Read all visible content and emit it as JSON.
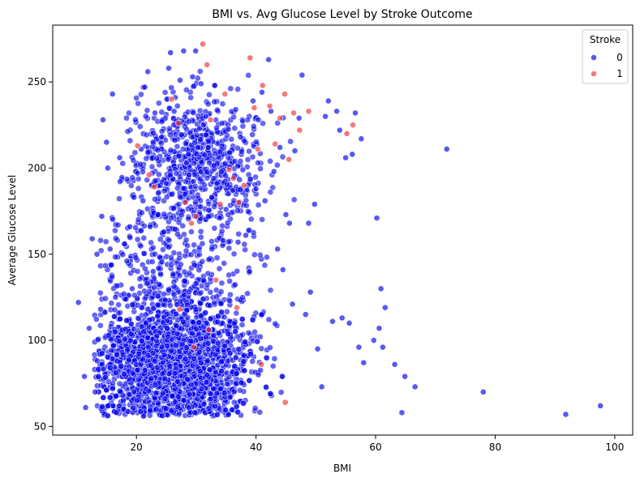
{
  "chart_data": {
    "type": "scatter",
    "title": "BMI vs. Avg Glucose Level by Stroke Outcome",
    "xlabel": "BMI",
    "ylabel": "Average Glucose Level",
    "xlim": [
      6,
      103
    ],
    "ylim": [
      45,
      283
    ],
    "xticks": [
      20,
      40,
      60,
      80,
      100
    ],
    "yticks": [
      50,
      100,
      150,
      200,
      250
    ],
    "grid": false,
    "legend": {
      "title": "Stroke",
      "placement": "top-right"
    },
    "series": [
      {
        "name": "0",
        "color": "#0000ee",
        "points": [
          [
            10.3,
            122
          ],
          [
            11.3,
            79
          ],
          [
            11.5,
            61
          ],
          [
            12.1,
            107
          ],
          [
            12.6,
            159
          ],
          [
            13.1,
            70
          ],
          [
            13.4,
            150
          ],
          [
            14.0,
            118
          ],
          [
            14.2,
            172
          ],
          [
            14.4,
            228
          ],
          [
            15.0,
            215
          ],
          [
            15.2,
            200
          ],
          [
            15.6,
            153
          ],
          [
            16.0,
            243
          ],
          [
            16.5,
            125
          ],
          [
            17.2,
            206
          ],
          [
            18.0,
            156
          ],
          [
            18.4,
            146
          ],
          [
            18.9,
            166
          ],
          [
            19.3,
            130
          ],
          [
            19.6,
            183
          ],
          [
            20.2,
            197
          ],
          [
            20.8,
            211
          ],
          [
            21.1,
            181
          ],
          [
            21.4,
            247
          ],
          [
            21.9,
            256
          ],
          [
            22.3,
            166
          ],
          [
            22.8,
            140
          ],
          [
            23.1,
            232
          ],
          [
            23.6,
            173
          ],
          [
            24.2,
            218
          ],
          [
            24.6,
            163
          ],
          [
            25.0,
            191
          ],
          [
            25.4,
            258
          ],
          [
            25.7,
            267
          ],
          [
            26.3,
            233
          ],
          [
            26.5,
            241
          ],
          [
            27.3,
            251
          ],
          [
            27.9,
            268
          ],
          [
            28.4,
            203
          ],
          [
            28.8,
            196
          ],
          [
            29.4,
            253
          ],
          [
            29.9,
            268
          ],
          [
            30.3,
            212
          ],
          [
            30.8,
            249
          ],
          [
            31.2,
            225
          ],
          [
            31.6,
            230
          ],
          [
            32.0,
            212
          ],
          [
            32.6,
            183
          ],
          [
            33.1,
            248
          ],
          [
            33.5,
            191
          ],
          [
            33.9,
            171
          ],
          [
            34.5,
            158
          ],
          [
            35.0,
            176
          ],
          [
            35.6,
            209
          ],
          [
            36.1,
            187
          ],
          [
            36.6,
            234
          ],
          [
            37.0,
            157
          ],
          [
            37.4,
            218
          ],
          [
            37.8,
            199
          ],
          [
            38.3,
            161
          ],
          [
            38.9,
            140
          ],
          [
            39.5,
            239
          ],
          [
            40.0,
            188
          ],
          [
            40.4,
            228
          ],
          [
            41.0,
            244
          ],
          [
            41.5,
            181
          ],
          [
            42.1,
            263
          ],
          [
            42.5,
            233
          ],
          [
            43.0,
            198
          ],
          [
            43.6,
            153
          ],
          [
            44.0,
            212
          ],
          [
            44.5,
            141
          ],
          [
            45.0,
            173
          ],
          [
            45.6,
            168
          ],
          [
            46.1,
            121
          ],
          [
            46.5,
            210
          ],
          [
            47.2,
            229
          ],
          [
            47.7,
            254
          ],
          [
            48.3,
            115
          ],
          [
            48.8,
            168
          ],
          [
            49.1,
            128
          ],
          [
            49.8,
            179
          ],
          [
            50.3,
            95
          ],
          [
            51.0,
            73
          ],
          [
            51.6,
            230
          ],
          [
            52.1,
            239
          ],
          [
            52.8,
            111
          ],
          [
            53.5,
            233
          ],
          [
            54.0,
            222
          ],
          [
            54.4,
            113
          ],
          [
            55.0,
            206
          ],
          [
            55.6,
            110
          ],
          [
            56.1,
            208
          ],
          [
            56.6,
            232
          ],
          [
            57.2,
            96
          ],
          [
            57.6,
            217
          ],
          [
            58.0,
            87
          ],
          [
            59.7,
            100
          ],
          [
            60.2,
            171
          ],
          [
            60.6,
            107
          ],
          [
            60.9,
            130
          ],
          [
            61.2,
            96
          ],
          [
            61.6,
            119
          ],
          [
            63.2,
            86
          ],
          [
            64.4,
            58
          ],
          [
            64.9,
            79
          ],
          [
            66.6,
            73
          ],
          [
            71.9,
            211
          ],
          [
            78.0,
            70
          ],
          [
            91.8,
            57
          ],
          [
            97.6,
            62
          ]
        ]
      },
      {
        "name": "1",
        "color": "#ee3333",
        "points": [
          [
            20.2,
            213
          ],
          [
            22.1,
            196
          ],
          [
            23.0,
            189
          ],
          [
            25.9,
            240
          ],
          [
            27.0,
            226
          ],
          [
            28.2,
            180
          ],
          [
            29.2,
            168
          ],
          [
            30.0,
            172
          ],
          [
            31.1,
            272
          ],
          [
            31.8,
            260
          ],
          [
            32.4,
            228
          ],
          [
            33.3,
            135
          ],
          [
            34.0,
            179
          ],
          [
            34.8,
            243
          ],
          [
            35.5,
            199
          ],
          [
            36.2,
            194
          ],
          [
            37.1,
            180
          ],
          [
            38.0,
            190
          ],
          [
            39.0,
            264
          ],
          [
            39.7,
            235
          ],
          [
            40.3,
            211
          ],
          [
            41.1,
            248
          ],
          [
            42.3,
            236
          ],
          [
            43.2,
            214
          ],
          [
            44.0,
            229
          ],
          [
            44.8,
            243
          ],
          [
            45.5,
            205
          ],
          [
            46.3,
            232
          ],
          [
            47.3,
            222
          ],
          [
            48.8,
            233
          ],
          [
            55.2,
            220
          ],
          [
            56.2,
            225
          ],
          [
            40.9,
            86
          ],
          [
            44.9,
            64
          ],
          [
            32.1,
            106
          ],
          [
            36.8,
            119
          ],
          [
            29.6,
            96
          ],
          [
            27.2,
            118
          ]
        ]
      }
    ]
  }
}
